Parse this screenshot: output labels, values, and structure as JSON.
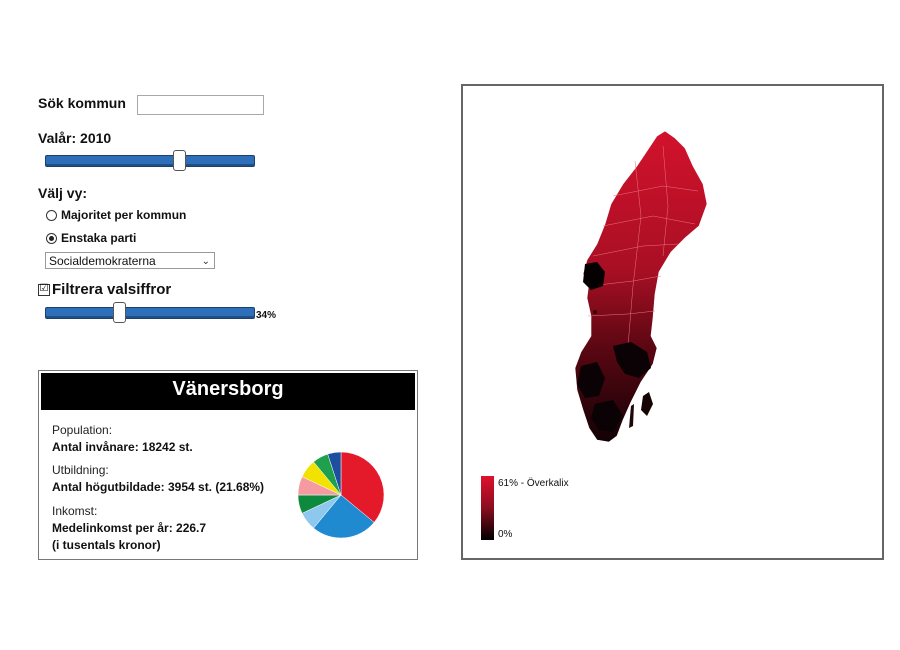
{
  "search": {
    "label": "Sök kommun",
    "value": "",
    "placeholder": ""
  },
  "year": {
    "label": "Valår: 2010",
    "fraction": 0.65
  },
  "view": {
    "label": "Välj vy:",
    "options": [
      {
        "label": "Majoritet per kommun",
        "selected": false
      },
      {
        "label": "Enstaka parti",
        "selected": true
      }
    ],
    "party_select": "Socialdemokraterna"
  },
  "filter": {
    "label": "Filtrera valsiffror",
    "checked": true,
    "checkmark": "☑",
    "value_text": "34%",
    "fraction": 0.34
  },
  "info": {
    "title": "Vänersborg",
    "population_heading": "Population:",
    "population_value": "Antal invånare: 18242 st.",
    "education_heading": "Utbildning:",
    "education_value": "Antal högutbildade: 3954 st. (21.68%)",
    "income_heading": "Inkomst:",
    "income_value": "Medelinkomst per år: 226.7",
    "income_note": "(i tusentals kronor)",
    "pie": [
      {
        "value": 36,
        "color": "#e41a2a"
      },
      {
        "value": 25,
        "color": "#1f8ad0"
      },
      {
        "value": 7,
        "color": "#8ec8ee"
      },
      {
        "value": 7,
        "color": "#0e8a3e"
      },
      {
        "value": 7,
        "color": "#f49aa0"
      },
      {
        "value": 7,
        "color": "#f2e200"
      },
      {
        "value": 6,
        "color": "#1fa04c"
      },
      {
        "value": 5,
        "color": "#1d4fa0"
      }
    ]
  },
  "map": {
    "legend_max": "61% - Överkalix",
    "legend_min": "0%",
    "color_high": "#e0102e",
    "color_low": "#000000"
  }
}
